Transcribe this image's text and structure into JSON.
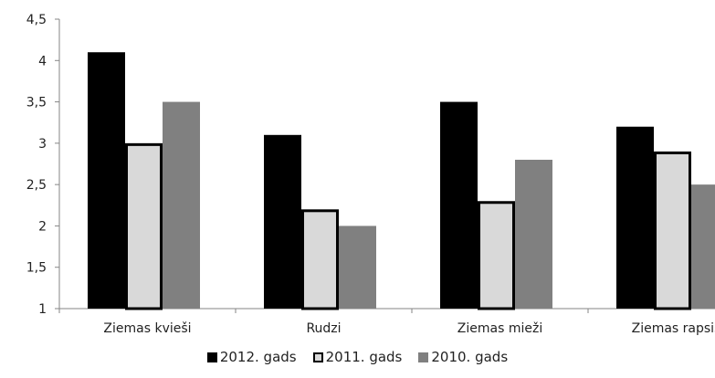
{
  "chart_data": {
    "type": "bar",
    "categories": [
      "Ziemas kvieši",
      "Rudzi",
      "Ziemas mieži",
      "Ziemas rapsis"
    ],
    "series": [
      {
        "name": "2012. gads",
        "values": [
          4.1,
          3.1,
          3.5,
          3.2
        ],
        "color": "#000000",
        "border": "#000000"
      },
      {
        "name": "2011. gads",
        "values": [
          3.0,
          2.2,
          2.3,
          2.9
        ],
        "color": "#d9d9d9",
        "border": "#000000"
      },
      {
        "name": "2010. gads",
        "values": [
          3.5,
          2.0,
          2.8,
          2.5
        ],
        "color": "#808080",
        "border": "#808080"
      }
    ],
    "ylim": [
      1,
      4.5
    ],
    "yticks": [
      "1",
      "1,5",
      "2",
      "2,5",
      "3",
      "3,5",
      "4",
      "4,5"
    ],
    "grid": false,
    "legend_position": "bottom",
    "title": "",
    "xlabel": "",
    "ylabel": ""
  }
}
